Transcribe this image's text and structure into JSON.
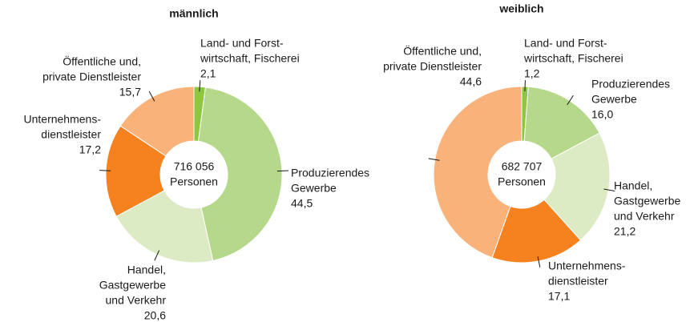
{
  "chart_data": [
    {
      "type": "donut",
      "title": "männlich",
      "center_text": [
        "716 056",
        "Personen"
      ],
      "categories": [
        [
          "Land- und Forst-",
          "wirtschaft, Fischerei"
        ],
        [
          "Produzierendes",
          "Gewerbe"
        ],
        [
          "Handel,",
          "Gastgewerbe",
          "und Verkehr"
        ],
        [
          "Unternehmens-",
          "dienstleister"
        ],
        [
          "Öffentliche und,",
          "private Dienstleister"
        ]
      ],
      "values": [
        2.1,
        44.5,
        20.6,
        17.2,
        15.7
      ],
      "value_labels": [
        "2,1",
        "44,5",
        "20,6",
        "17,2",
        "15,7"
      ],
      "colors": [
        "#8dc63f",
        "#b5d88a",
        "#dcebc4",
        "#f5821f",
        "#f9b27a"
      ]
    },
    {
      "type": "donut",
      "title": "weiblich",
      "center_text": [
        "682 707",
        "Personen"
      ],
      "categories": [
        [
          "Land- und Forst-",
          "wirtschaft, Fischerei"
        ],
        [
          "Produzierendes",
          "Gewerbe"
        ],
        [
          "Handel,",
          "Gastgewerbe",
          "und Verkehr"
        ],
        [
          "Unternehmens-",
          "dienstleister"
        ],
        [
          "Öffentliche und,",
          "private Dienstleister"
        ]
      ],
      "values": [
        1.2,
        16.0,
        21.2,
        17.1,
        44.6
      ],
      "value_labels": [
        "1,2",
        "16,0",
        "21,2",
        "17,1",
        "44,6"
      ],
      "colors": [
        "#8dc63f",
        "#b5d88a",
        "#dcebc4",
        "#f5821f",
        "#f9b27a"
      ]
    }
  ]
}
